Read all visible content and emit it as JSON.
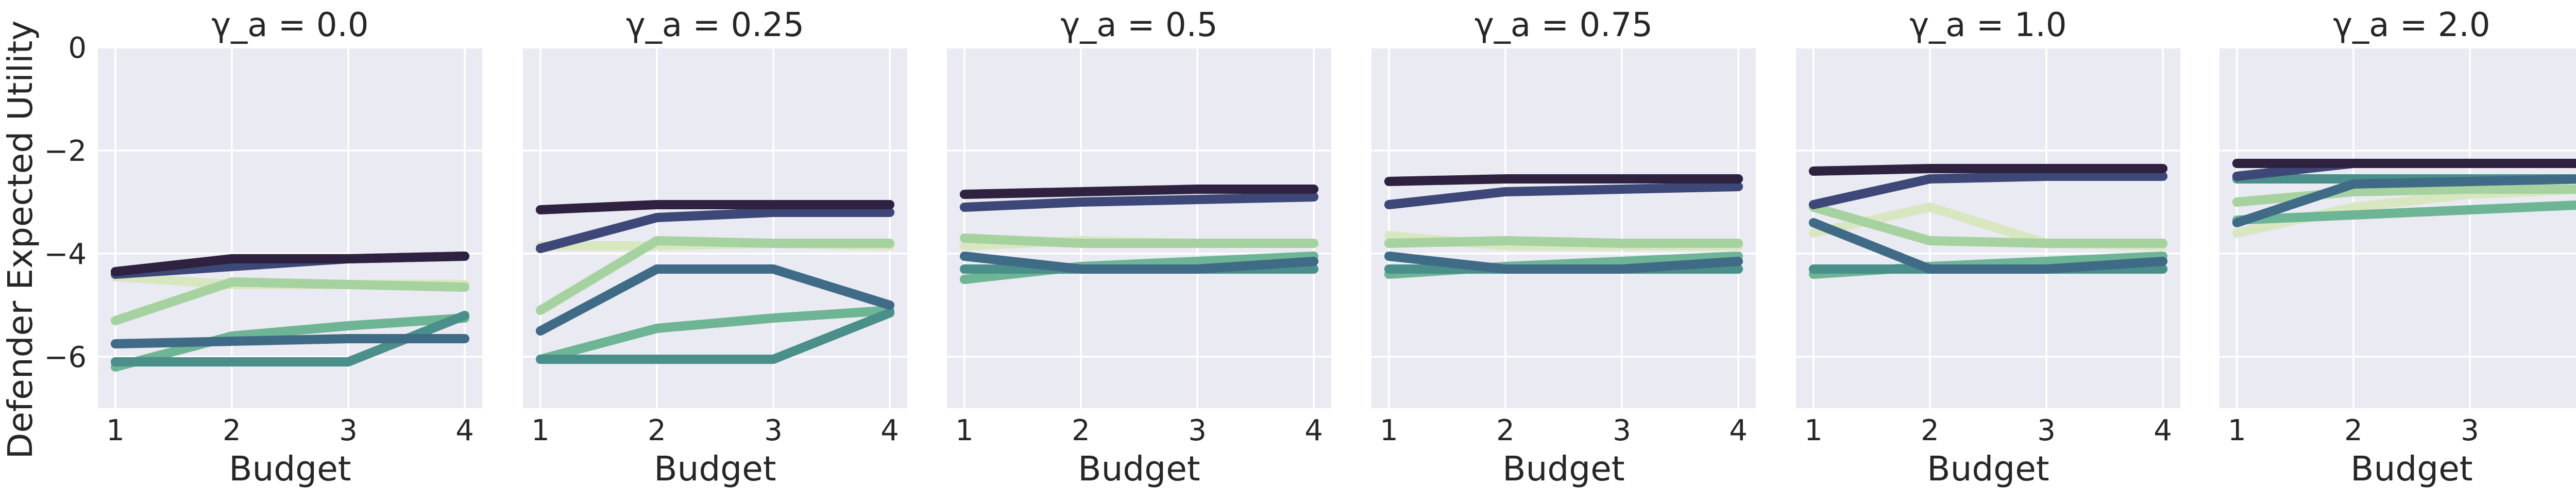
{
  "chart_data": {
    "type": "line",
    "ylabel": "Defender Expected Utility",
    "xlabel": "Budget",
    "x": [
      1,
      2,
      3,
      4
    ],
    "xticks": [
      1,
      2,
      3,
      4
    ],
    "yticks": [
      0,
      -2,
      -4,
      -6
    ],
    "ytick_labels": [
      "0",
      "−2",
      "−4",
      "−6"
    ],
    "xlim": [
      0.85,
      4.15
    ],
    "ylim": [
      -7,
      0
    ],
    "grid": true,
    "shared_y": true,
    "series_colors": [
      "#d9e7c1",
      "#a6d2a0",
      "#6db594",
      "#4a8f8a",
      "#3f6b87",
      "#3d4878",
      "#2e2240"
    ],
    "panels": [
      {
        "title": "γ_a = 0.0",
        "series": [
          {
            "values": [
              -4.45,
              -4.6,
              -4.6,
              -4.6
            ]
          },
          {
            "values": [
              -5.3,
              -4.55,
              -4.6,
              -4.65
            ]
          },
          {
            "values": [
              -6.2,
              -5.6,
              -5.4,
              -5.25
            ]
          },
          {
            "values": [
              -6.1,
              -6.1,
              -6.1,
              -5.2
            ]
          },
          {
            "values": [
              -5.75,
              -5.7,
              -5.65,
              -5.65
            ]
          },
          {
            "values": [
              -4.4,
              -4.25,
              -4.1,
              -4.05
            ]
          },
          {
            "values": [
              -4.35,
              -4.1,
              -4.1,
              -4.05
            ]
          }
        ]
      },
      {
        "title": "γ_a = 0.25",
        "series": [
          {
            "values": [
              -3.85,
              -3.85,
              -3.8,
              -3.85
            ]
          },
          {
            "values": [
              -5.1,
              -3.75,
              -3.8,
              -3.8
            ]
          },
          {
            "values": [
              -6.05,
              -5.45,
              -5.25,
              -5.1
            ]
          },
          {
            "values": [
              -6.05,
              -6.05,
              -6.05,
              -5.15
            ]
          },
          {
            "values": [
              -5.5,
              -4.3,
              -4.3,
              -5.0
            ]
          },
          {
            "values": [
              -3.9,
              -3.3,
              -3.2,
              -3.2
            ]
          },
          {
            "values": [
              -3.15,
              -3.05,
              -3.05,
              -3.05
            ]
          }
        ]
      },
      {
        "title": "γ_a = 0.5",
        "series": [
          {
            "values": [
              -3.85,
              -3.75,
              -3.8,
              -3.8
            ]
          },
          {
            "values": [
              -3.7,
              -3.8,
              -3.8,
              -3.8
            ]
          },
          {
            "values": [
              -4.5,
              -4.25,
              -4.15,
              -4.05
            ]
          },
          {
            "values": [
              -4.3,
              -4.3,
              -4.3,
              -4.3
            ]
          },
          {
            "values": [
              -4.05,
              -4.3,
              -4.3,
              -4.15
            ]
          },
          {
            "values": [
              -3.1,
              -3.0,
              -2.95,
              -2.9
            ]
          },
          {
            "values": [
              -2.85,
              -2.8,
              -2.75,
              -2.75
            ]
          }
        ]
      },
      {
        "title": "γ_a = 0.75",
        "series": [
          {
            "values": [
              -3.65,
              -3.85,
              -3.85,
              -3.85
            ]
          },
          {
            "values": [
              -3.8,
              -3.75,
              -3.8,
              -3.8
            ]
          },
          {
            "values": [
              -4.4,
              -4.25,
              -4.15,
              -4.05
            ]
          },
          {
            "values": [
              -4.3,
              -4.3,
              -4.3,
              -4.3
            ]
          },
          {
            "values": [
              -4.05,
              -4.3,
              -4.3,
              -4.15
            ]
          },
          {
            "values": [
              -3.05,
              -2.8,
              -2.75,
              -2.7
            ]
          },
          {
            "values": [
              -2.6,
              -2.55,
              -2.55,
              -2.55
            ]
          }
        ]
      },
      {
        "title": "γ_a = 1.0",
        "series": [
          {
            "values": [
              -3.6,
              -3.1,
              -3.8,
              -3.85
            ]
          },
          {
            "values": [
              -3.1,
              -3.75,
              -3.8,
              -3.8
            ]
          },
          {
            "values": [
              -4.4,
              -4.25,
              -4.15,
              -4.05
            ]
          },
          {
            "values": [
              -4.3,
              -4.3,
              -4.3,
              -4.3
            ]
          },
          {
            "values": [
              -3.4,
              -4.3,
              -4.3,
              -4.15
            ]
          },
          {
            "values": [
              -3.05,
              -2.55,
              -2.5,
              -2.5
            ]
          },
          {
            "values": [
              -2.4,
              -2.35,
              -2.35,
              -2.35
            ]
          }
        ]
      },
      {
        "title": "γ_a = 2.0",
        "series": [
          {
            "values": [
              -3.6,
              -3.1,
              -2.85,
              -2.75
            ]
          },
          {
            "values": [
              -3.0,
              -2.8,
              -2.75,
              -2.75
            ]
          },
          {
            "values": [
              -3.35,
              -3.25,
              -3.15,
              -3.05
            ]
          },
          {
            "values": [
              -2.55,
              -2.55,
              -2.55,
              -2.55
            ]
          },
          {
            "values": [
              -3.4,
              -2.65,
              -2.6,
              -2.55
            ]
          },
          {
            "values": [
              -2.5,
              -2.25,
              -2.25,
              -2.25
            ]
          },
          {
            "values": [
              -2.25,
              -2.25,
              -2.25,
              -2.25
            ]
          }
        ]
      }
    ]
  }
}
